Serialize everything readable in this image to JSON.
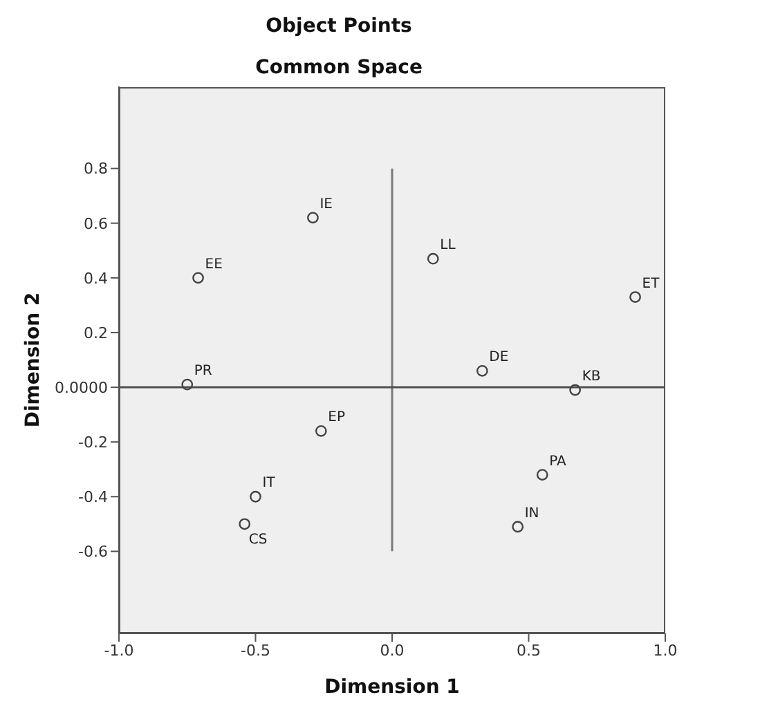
{
  "chart_data": {
    "type": "scatter",
    "title": "Object Points",
    "subtitle": "Common Space",
    "xlabel": "Dimension 1",
    "ylabel": "Dimension 2",
    "x": [
      -0.29,
      -0.71,
      -0.75,
      0.15,
      0.89,
      0.33,
      0.67,
      -0.26,
      -0.5,
      -0.54,
      0.55,
      0.46
    ],
    "values": [
      0.62,
      0.4,
      0.01,
      0.47,
      0.33,
      0.06,
      -0.01,
      -0.16,
      -0.4,
      -0.5,
      -0.32,
      -0.51
    ],
    "value_labels": [
      "IE",
      "EE",
      "PR",
      "LL",
      "ET",
      "DE",
      "KB",
      "EP",
      "IT",
      "CS",
      "PA",
      "IN"
    ],
    "color": "#444444",
    "marker": "circle",
    "xlim": [
      -1,
      1
    ],
    "xticks": [
      {
        "value": -1,
        "label": "-1.0"
      },
      {
        "value": -0.5,
        "label": "-0.5"
      },
      {
        "value": 0,
        "label": "0.0"
      },
      {
        "value": 0.5,
        "label": "0.5"
      },
      {
        "value": 1,
        "label": "1.0"
      }
    ],
    "ylim": [
      -0.9,
      1.1
    ],
    "yticks": [
      -0.6,
      -0.4,
      -0.2,
      {
        "value": 0,
        "label": "0.0000"
      },
      0.2,
      0.4,
      0.6,
      0.8
    ],
    "ref_lines": [
      {
        "axis": "x",
        "value": 0,
        "color": "#7a7a7a"
      },
      {
        "axis": "y",
        "value": 0,
        "color": "#505050"
      }
    ]
  }
}
